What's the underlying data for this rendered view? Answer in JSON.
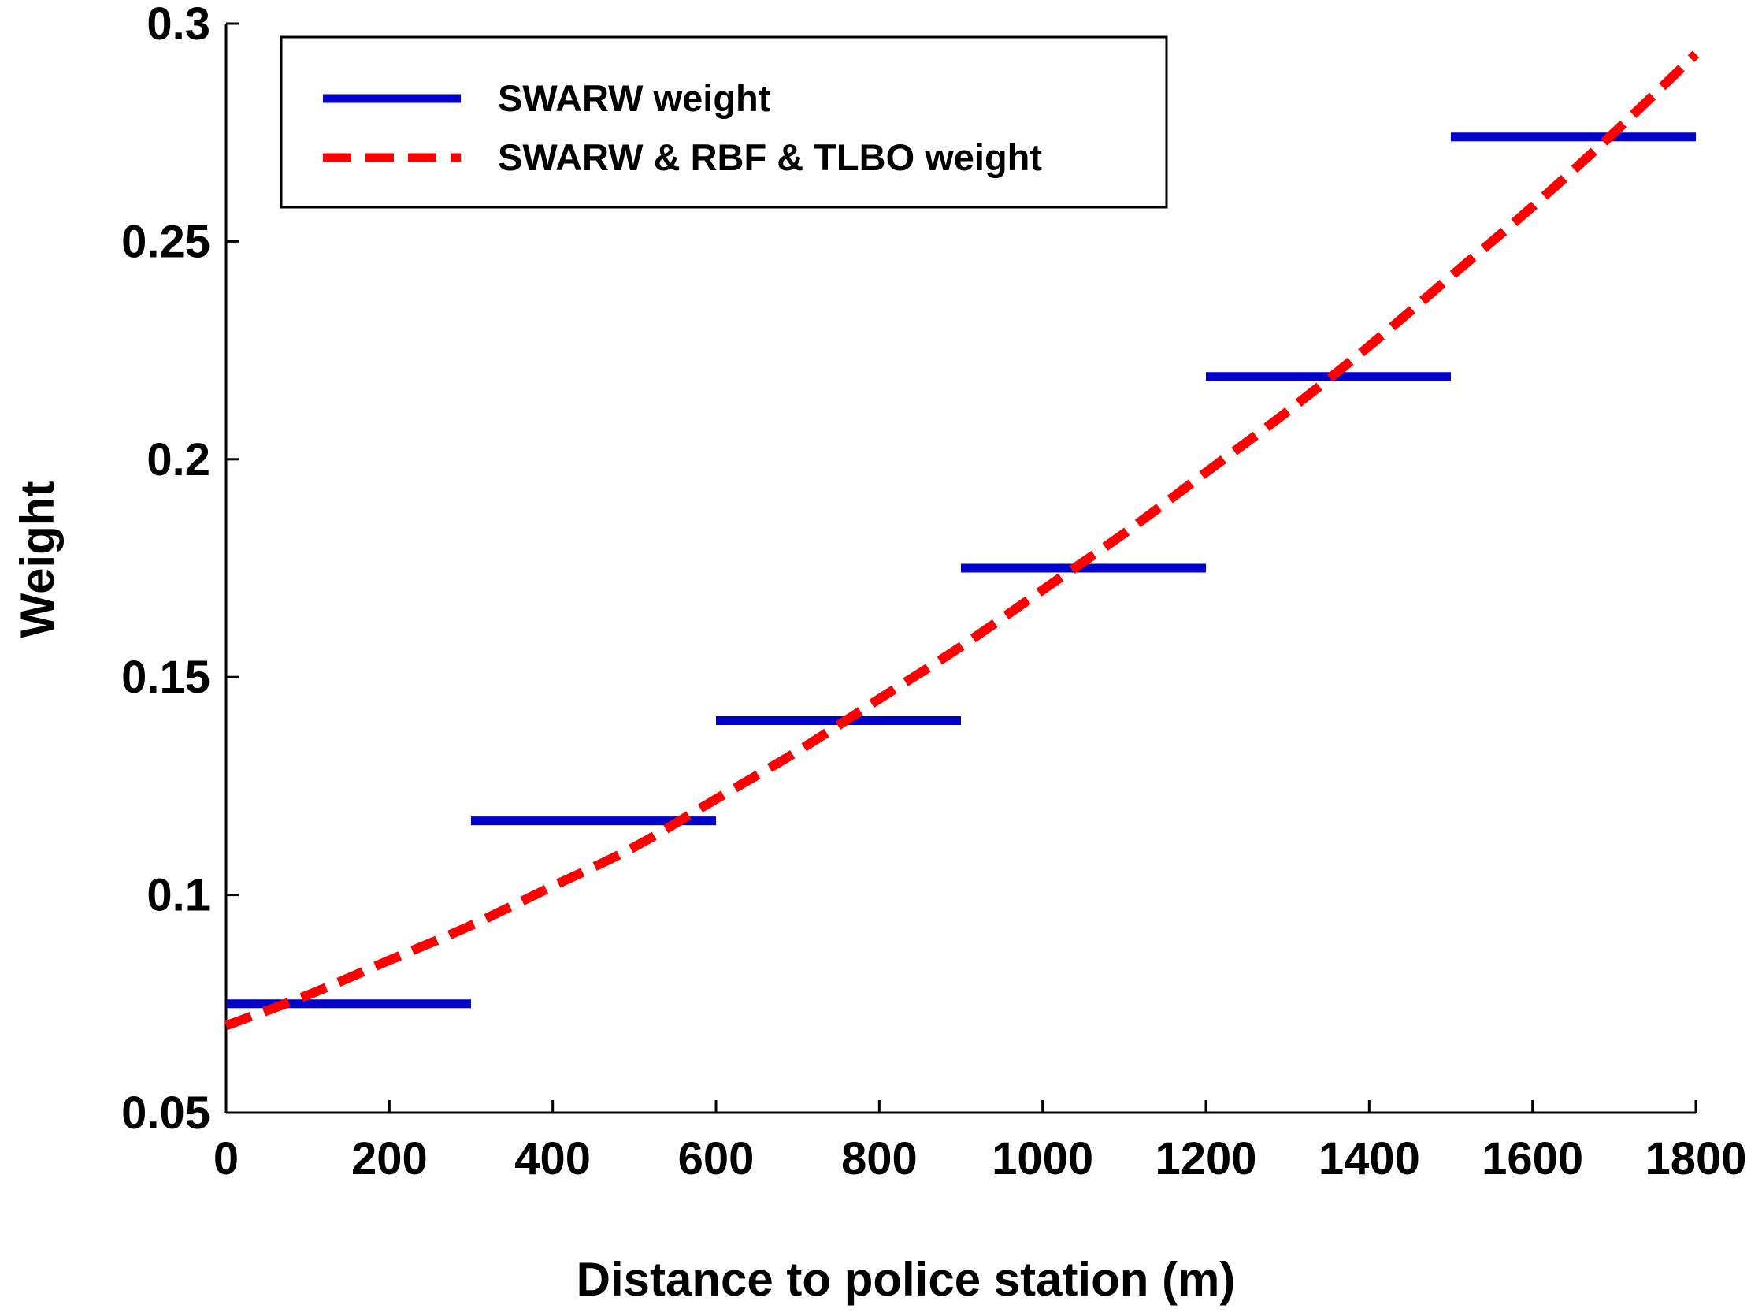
{
  "chart_data": {
    "type": "line",
    "title": "",
    "xlabel": "Distance to police station (m)",
    "ylabel": "Weight",
    "xlim": [
      0,
      1800
    ],
    "ylim": [
      0.05,
      0.3
    ],
    "x_ticks": [
      0,
      200,
      400,
      600,
      800,
      1000,
      1200,
      1400,
      1600,
      1800
    ],
    "y_ticks": [
      0.05,
      0.1,
      0.15,
      0.2,
      0.25,
      0.3
    ],
    "x_tick_labels": [
      "0",
      "200",
      "400",
      "600",
      "800",
      "1000",
      "1200",
      "1400",
      "1600",
      "1800"
    ],
    "y_tick_labels": [
      "0.05",
      "0.1",
      "0.15",
      "0.2",
      "0.25",
      "0.3"
    ],
    "grid": false,
    "legend_position": "top-left",
    "series": [
      {
        "name": "SWARW weight",
        "style": "step",
        "color": "#0000cc",
        "segments": [
          {
            "x": [
              0,
              300
            ],
            "y": 0.075
          },
          {
            "x": [
              300,
              600
            ],
            "y": 0.117
          },
          {
            "x": [
              600,
              900
            ],
            "y": 0.14
          },
          {
            "x": [
              900,
              1200
            ],
            "y": 0.175
          },
          {
            "x": [
              1200,
              1500
            ],
            "y": 0.219
          },
          {
            "x": [
              1500,
              1800
            ],
            "y": 0.274
          }
        ]
      },
      {
        "name": "SWARW & RBF & TLBO weight",
        "style": "dashed",
        "color": "#ff0000",
        "x": [
          0,
          100,
          200,
          300,
          400,
          500,
          600,
          700,
          800,
          900,
          1000,
          1100,
          1200,
          1300,
          1400,
          1500,
          1600,
          1700,
          1800
        ],
        "y": [
          0.07,
          0.077,
          0.085,
          0.093,
          0.102,
          0.111,
          0.122,
          0.133,
          0.145,
          0.157,
          0.17,
          0.183,
          0.197,
          0.211,
          0.226,
          0.242,
          0.258,
          0.275,
          0.293
        ]
      }
    ]
  }
}
